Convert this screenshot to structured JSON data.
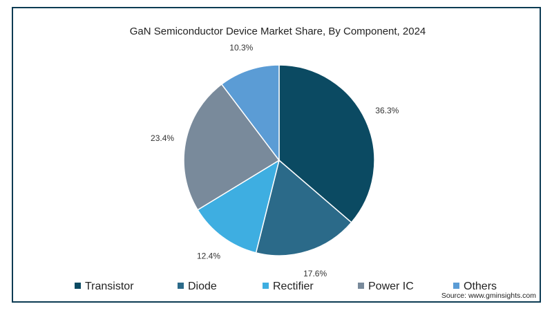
{
  "chart_data": {
    "type": "pie",
    "title": "GaN Semiconductor Device Market Share, By Component, 2024",
    "categories": [
      "Transistor",
      "Diode",
      "Rectifier",
      "Power IC",
      "Others"
    ],
    "values": [
      36.3,
      17.6,
      12.4,
      23.4,
      10.3
    ],
    "value_labels": [
      "36.3%",
      "17.6%",
      "12.4%",
      "23.4%",
      "10.3%"
    ],
    "colors": [
      "#0b4a62",
      "#2b6a89",
      "#3eaee1",
      "#798a9b",
      "#5b9cd5"
    ],
    "legend_position": "bottom",
    "start_angle": "top",
    "direction": "clockwise"
  },
  "source": "Source: www.gminsights.com"
}
